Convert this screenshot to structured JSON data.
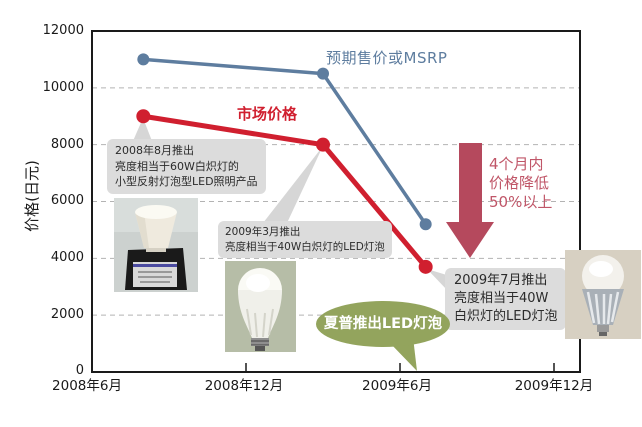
{
  "chart_data": {
    "type": "line",
    "title": "",
    "xlabel": "",
    "ylabel": "价格(日元)",
    "ylim": [
      0,
      12000
    ],
    "y_tick_values": [
      12000,
      10000,
      8000,
      6000,
      4000,
      2000,
      0
    ],
    "y_tick_labels": [
      "12000",
      "10000",
      "8000",
      "6000",
      "4000",
      "2000",
      "0"
    ],
    "x_tick_labels": [
      "2008年6月",
      "2008年12月",
      "2009年6月",
      "2009年12月"
    ],
    "x_tick_months": [
      0,
      6,
      12,
      18
    ],
    "grid": "horizontal-dashed",
    "legend_position": "inline-labels-on-chart",
    "series": [
      {
        "name": "预期售价或MSRP",
        "color": "#5e7d9f",
        "points": [
          {
            "date": "2008年8月",
            "month": 2,
            "value": 11000
          },
          {
            "date": "2009年3月",
            "month": 9,
            "value": 10500
          },
          {
            "date": "2009年7月",
            "month": 13,
            "value": 5200
          }
        ]
      },
      {
        "name": "市场价格",
        "color": "#d01f2f",
        "points": [
          {
            "date": "2008年8月",
            "month": 2,
            "value": 9000
          },
          {
            "date": "2009年3月",
            "month": 9,
            "value": 8000
          },
          {
            "date": "2009年7月",
            "month": 13,
            "value": 3700
          }
        ]
      }
    ]
  },
  "annotations": {
    "box1": {
      "line1": "2008年8月推出",
      "line2": "亮度相当于60W白炽灯的",
      "line3": "小型反射灯泡型LED照明产品"
    },
    "box2": {
      "line1": "2009年3月推出",
      "line2": "亮度相当于40W白炽灯的LED灯泡"
    },
    "box3": {
      "line1": "2009年7月推出",
      "line2": "亮度相当于40W",
      "line3": "白炽灯的LED灯泡"
    },
    "arrow": {
      "line1": "4个月内",
      "line2": "价格降低",
      "line3": "50%以上"
    },
    "bubble": "夏普推出LED灯泡"
  },
  "photos": {
    "photo1": "small-reflector-led-lamp-on-black-base",
    "photo2": "white-led-bulb",
    "photo3": "led-bulb-with-heatsink"
  },
  "colors": {
    "msrp_line": "#5e7d9f",
    "market_line": "#d01f2f",
    "arrow": "#b5495d",
    "arrow_text": "#c05668",
    "bubble": "#93a45d",
    "callout_box": "#dcdcdc",
    "callout_tail": "#d6d6d6",
    "gridline": "#b3b3b3",
    "axis": "#1a1a1a"
  }
}
